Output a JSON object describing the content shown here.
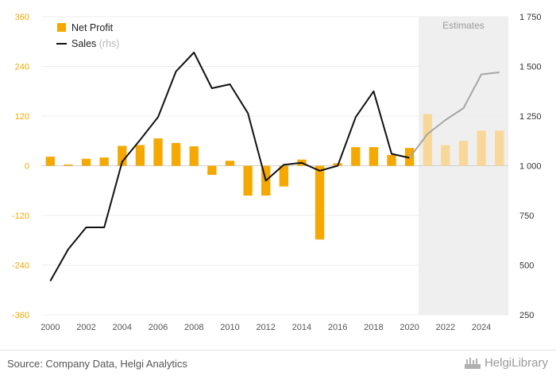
{
  "chart_data": {
    "type": "bar+line",
    "x": [
      2000,
      2001,
      2002,
      2003,
      2004,
      2005,
      2006,
      2007,
      2008,
      2009,
      2010,
      2011,
      2012,
      2013,
      2014,
      2015,
      2016,
      2017,
      2018,
      2019,
      2020,
      2021,
      2022,
      2023,
      2024,
      2025
    ],
    "x_tick_labels": [
      "2000",
      "2002",
      "2004",
      "2006",
      "2008",
      "2010",
      "2012",
      "2014",
      "2016",
      "2018",
      "2020",
      "2022",
      "2024"
    ],
    "series": [
      {
        "name": "Net Profit",
        "type": "bar",
        "axis": "left",
        "color": "#f5a800",
        "estimate_color": "#f8d89a",
        "values": [
          22,
          3,
          17,
          20,
          48,
          50,
          66,
          55,
          47,
          -22,
          12,
          -72,
          -72,
          -50,
          15,
          -178,
          6,
          45,
          45,
          26,
          43,
          125,
          50,
          60,
          85,
          85
        ]
      },
      {
        "name": "Sales",
        "name_suffix": "(rhs)",
        "type": "line",
        "axis": "right",
        "color": "#111111",
        "estimate_color": "#a6a6a6",
        "values": [
          420,
          580,
          690,
          690,
          1020,
          1130,
          1245,
          1475,
          1570,
          1390,
          1410,
          1265,
          925,
          1005,
          1015,
          975,
          1000,
          1245,
          1375,
          1060,
          1040,
          1160,
          1230,
          1290,
          1460,
          1470
        ]
      }
    ],
    "left_axis": {
      "ticks": [
        "360",
        "240",
        "120",
        "0",
        "-120",
        "-240",
        "-360"
      ],
      "range": [
        -360,
        360
      ]
    },
    "right_axis": {
      "ticks": [
        "1 750",
        "1 500",
        "1 250",
        "1 000",
        "750",
        "500",
        "250"
      ],
      "range": [
        250,
        1750
      ]
    },
    "estimates": {
      "label": "Estimates",
      "from_year": 2020.5,
      "to_year": 2025.5
    },
    "legend_position": "top-left"
  },
  "footer": {
    "source": "Source: Company Data, Helgi Analytics",
    "brand": "HelgiLibrary"
  }
}
